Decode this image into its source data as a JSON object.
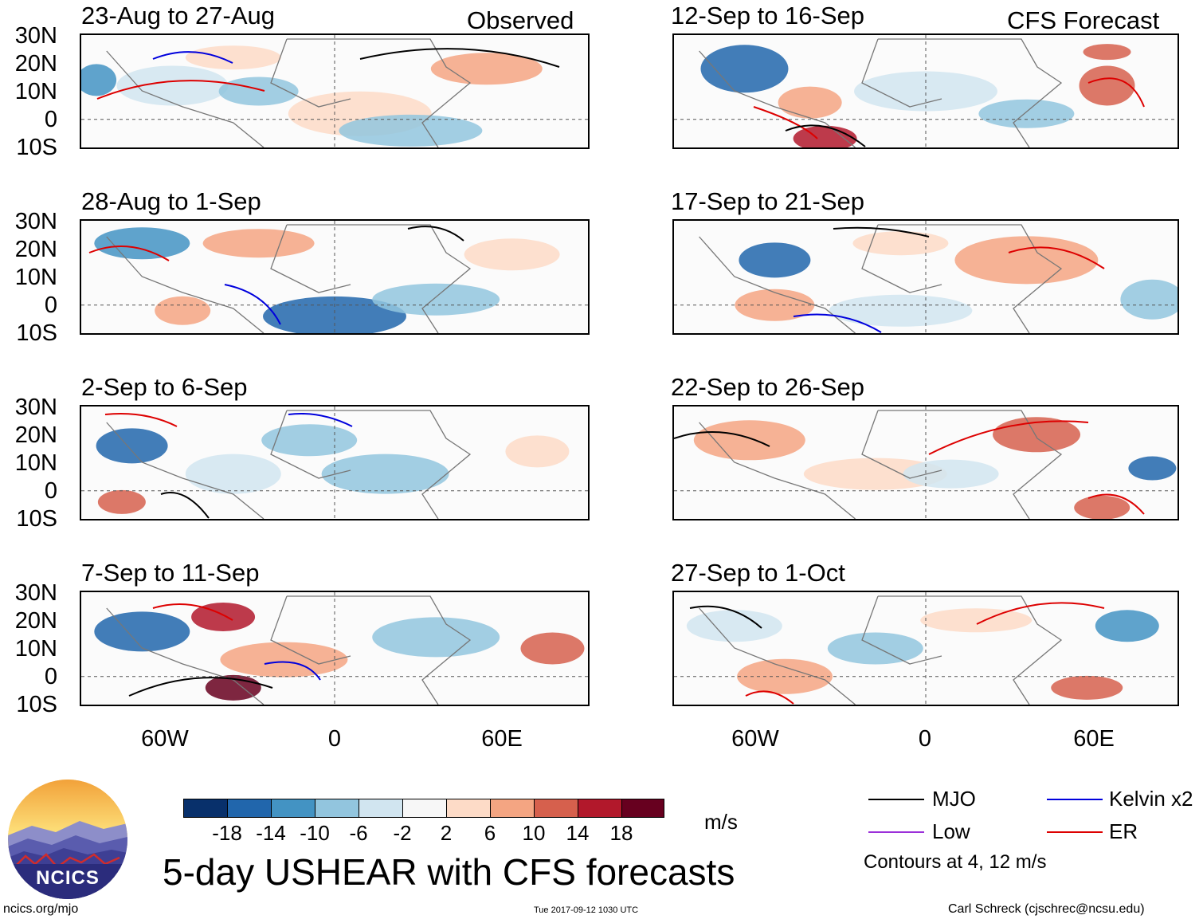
{
  "panels": [
    {
      "title": "23-Aug to 27-Aug",
      "tag": "Observed"
    },
    {
      "title": "12-Sep to 16-Sep",
      "tag": "CFS Forecast"
    },
    {
      "title": "28-Aug to 1-Sep"
    },
    {
      "title": "17-Sep to 21-Sep"
    },
    {
      "title": "2-Sep to 6-Sep"
    },
    {
      "title": "22-Sep to 26-Sep"
    },
    {
      "title": "7-Sep to 11-Sep"
    },
    {
      "title": "27-Sep to 1-Oct"
    }
  ],
  "lat_labels": [
    "30N",
    "20N",
    "10N",
    "0",
    "10S"
  ],
  "lon_labels": [
    "60W",
    "0",
    "60E"
  ],
  "colorbar": {
    "colors": [
      "#08306b",
      "#2166ac",
      "#4393c3",
      "#92c5de",
      "#d1e5f0",
      "#f7f7f7",
      "#fddbc7",
      "#f4a582",
      "#d6604d",
      "#b2182b",
      "#67001f"
    ],
    "ticks": [
      "-18",
      "-14",
      "-10",
      "-6",
      "-2",
      "2",
      "6",
      "10",
      "14",
      "18"
    ],
    "units": "m/s"
  },
  "title": "5-day USHEAR with CFS forecasts",
  "legend": [
    {
      "label": "MJO",
      "color": "#000000"
    },
    {
      "label": "Kelvin x2",
      "color": "#0000dd"
    },
    {
      "label": "Low",
      "color": "#9b30d9"
    },
    {
      "label": "ER",
      "color": "#dd0000"
    }
  ],
  "contours_note": "Contours at 4, 12 m/s",
  "logo_text": "NCICS",
  "footer": {
    "left": "ncics.org/mjo",
    "center": "Tue 2017-09-12 1030 UTC",
    "right": "Carl Schreck (cjschrec@ncsu.edu)"
  }
}
